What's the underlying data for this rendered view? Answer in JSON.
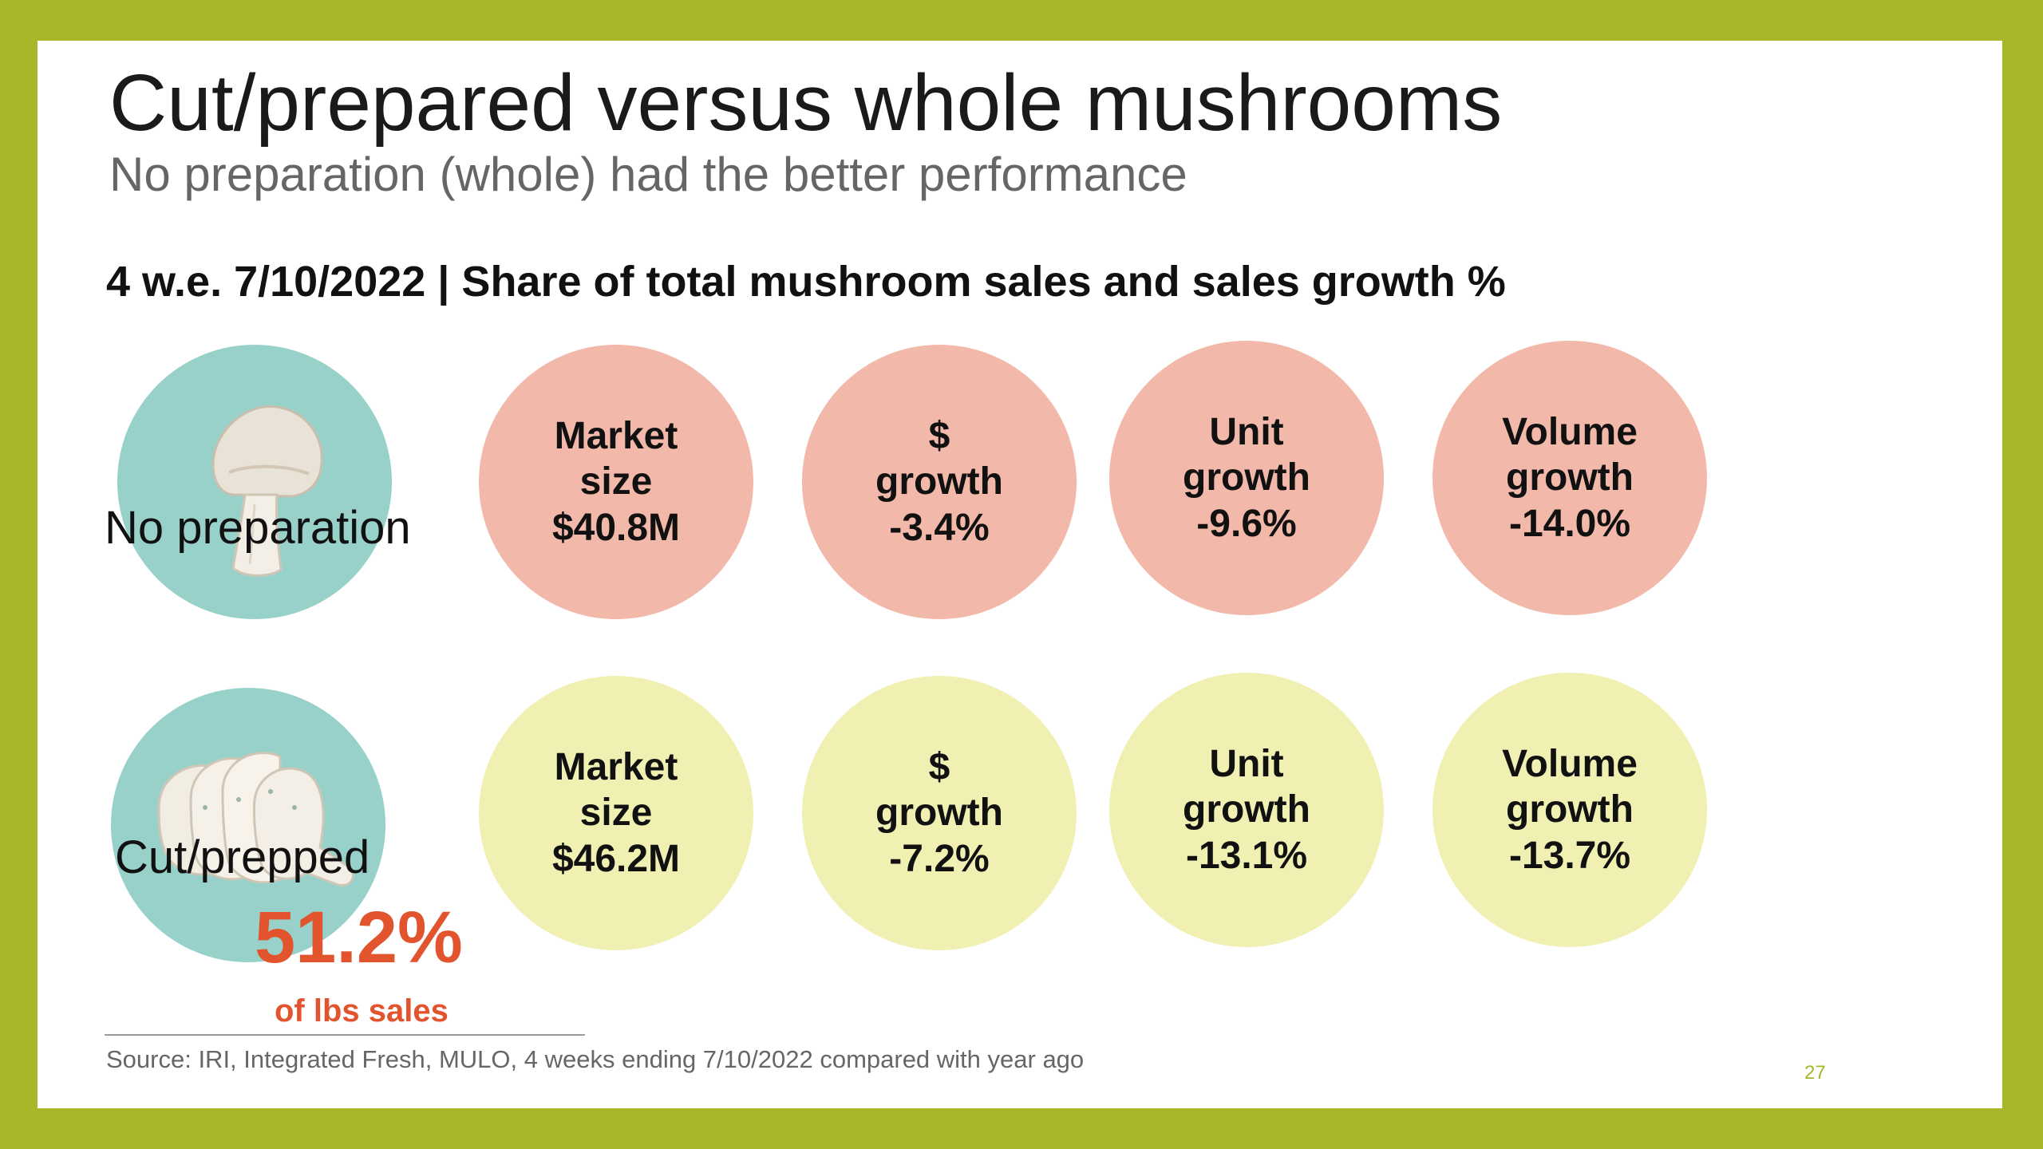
{
  "title": "Cut/prepared versus whole mushrooms",
  "subtitle": "No preparation (whole) had the better performance",
  "heading": "4 w.e. 7/10/2022 | Share of total mushroom sales and sales growth %",
  "colors": {
    "frame": "#a7b727",
    "icon_circle": "#98d1c9",
    "no_preparation_circles": "#f2b8a9",
    "cut_prepped_circles": "#f1f0b3",
    "share_highlight": "#e2542d"
  },
  "rows": [
    {
      "label": "No preparation",
      "icon": "whole-mushroom-icon",
      "metrics": [
        {
          "line1": "Market",
          "line2": "size",
          "value": "$40.8M"
        },
        {
          "line1": "$",
          "line2": "growth",
          "value": "-3.4%"
        },
        {
          "line1": "Unit",
          "line2": "growth",
          "value": "-9.6%"
        },
        {
          "line1": "Volume",
          "line2": "growth",
          "value": "-14.0%"
        }
      ]
    },
    {
      "label": "Cut/prepped",
      "icon": "sliced-mushroom-icon",
      "share_value": "51.2%",
      "share_label": "of lbs sales",
      "metrics": [
        {
          "line1": "Market",
          "line2": "size",
          "value": "$46.2M"
        },
        {
          "line1": "$",
          "line2": "growth",
          "value": "-7.2%"
        },
        {
          "line1": "Unit",
          "line2": "growth",
          "value": "-13.1%"
        },
        {
          "line1": "Volume",
          "line2": "growth",
          "value": "-13.7%"
        }
      ]
    }
  ],
  "source": "Source: IRI, Integrated Fresh, MULO, 4 weeks ending 7/10/2022 compared with year ago",
  "page_number": "27"
}
